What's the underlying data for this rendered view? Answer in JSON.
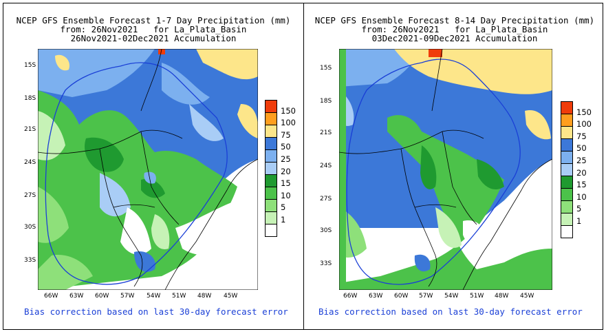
{
  "panels": [
    {
      "title_line1": "NCEP GFS Ensemble Forecast 1-7 Day Precipitation (mm)",
      "title_line2": "from: 26Nov2021   for La_Plata_Basin",
      "title_line3": "26Nov2021-02Dec2021 Accumulation",
      "note": "Bias correction based on last 30-day forecast error"
    },
    {
      "title_line1": "NCEP GFS Ensemble Forecast 8-14 Day Precipitation (mm)",
      "title_line2": "from: 26Nov2021   for La_Plata_Basin",
      "title_line3": "03Dec2021-09Dec2021 Accumulation",
      "note": "Bias correction based on last 30-day forecast error"
    }
  ],
  "axes": {
    "lat_labels": [
      "15S",
      "18S",
      "21S",
      "24S",
      "27S",
      "30S",
      "33S"
    ],
    "lon_labels": [
      "66W",
      "63W",
      "60W",
      "57W",
      "54W",
      "51W",
      "48W",
      "45W"
    ]
  },
  "legend": {
    "labels": [
      "150",
      "100",
      "75",
      "50",
      "25",
      "20",
      "15",
      "10",
      "5",
      "1"
    ],
    "colors": [
      "#f03c0a",
      "#ff9e1e",
      "#fde68a",
      "#3c78d8",
      "#7cb0ef",
      "#a9cdf6",
      "#1f9a30",
      "#4cc24a",
      "#8ee07a",
      "#c6f2b6",
      "#ffffff"
    ]
  }
}
